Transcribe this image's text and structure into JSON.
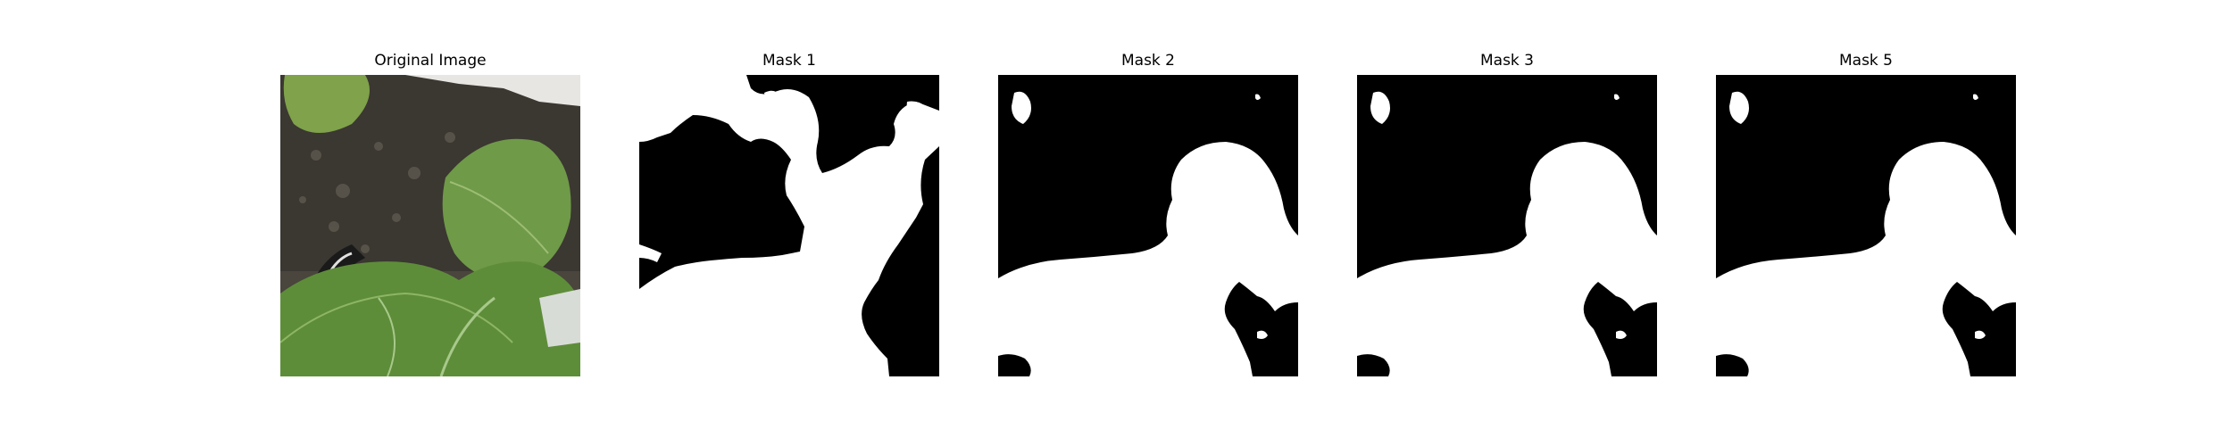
{
  "panels": [
    {
      "title": "Original Image",
      "kind": "photo"
    },
    {
      "title": "Mask 1",
      "kind": "mask"
    },
    {
      "title": "Mask 2",
      "kind": "mask"
    },
    {
      "title": "Mask 3",
      "kind": "mask"
    },
    {
      "title": "Mask 5",
      "kind": "mask"
    }
  ],
  "colors": {
    "background": "#ffffff",
    "mask_foreground": "#ffffff",
    "mask_background": "#000000",
    "leaf_green": "#5f8f3c",
    "soil_dark": "#3a3630"
  }
}
